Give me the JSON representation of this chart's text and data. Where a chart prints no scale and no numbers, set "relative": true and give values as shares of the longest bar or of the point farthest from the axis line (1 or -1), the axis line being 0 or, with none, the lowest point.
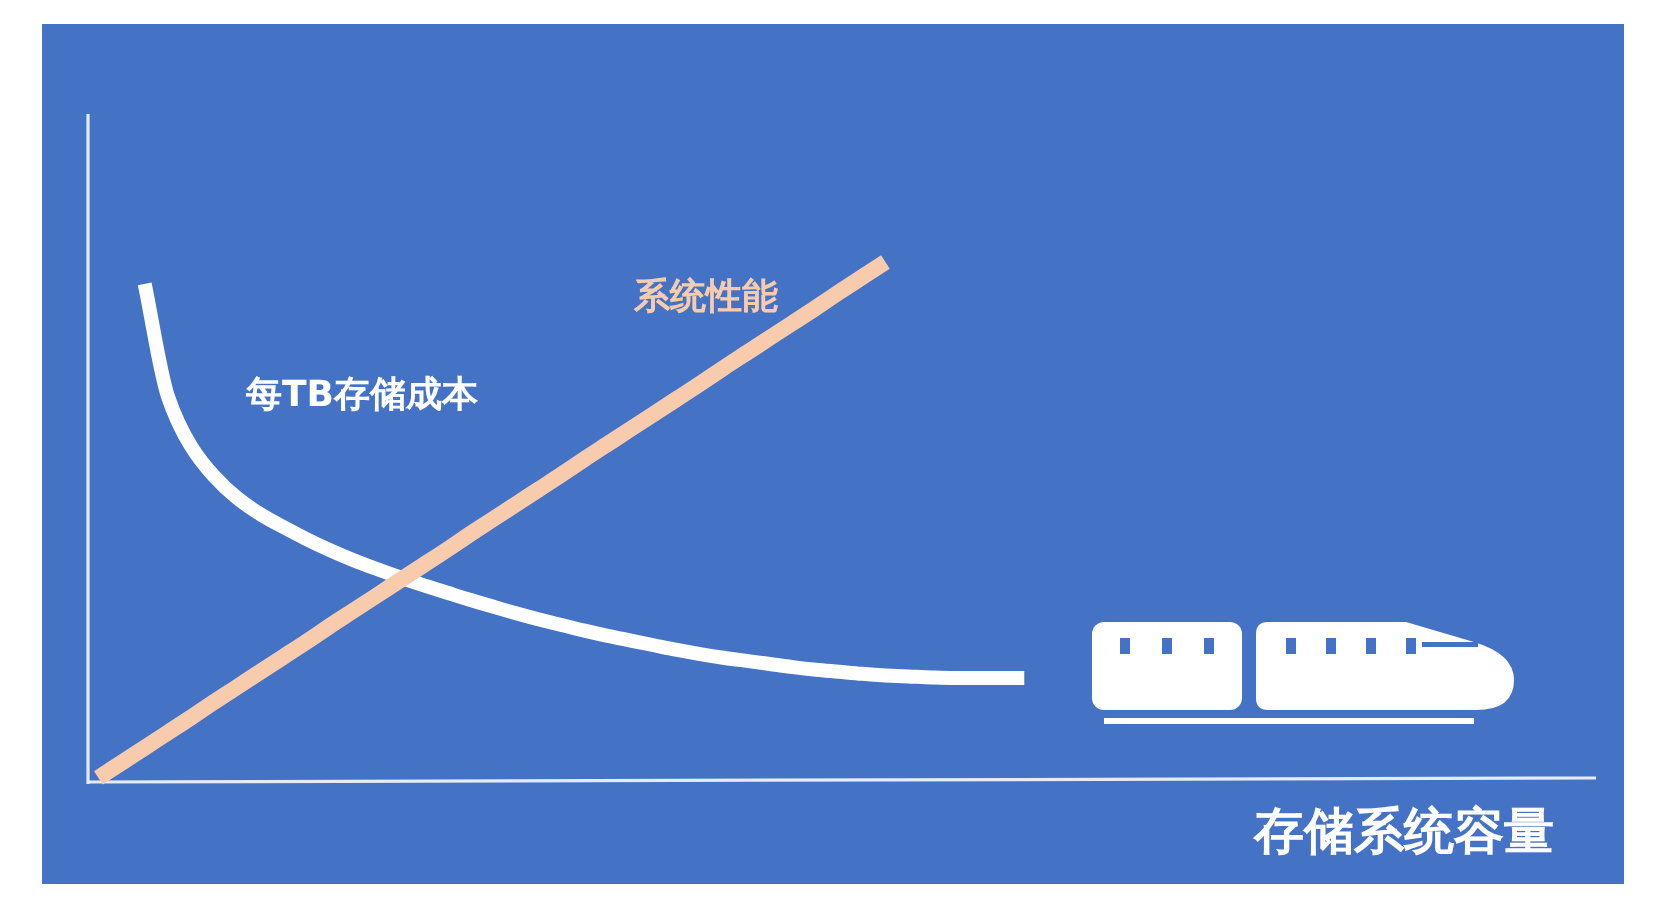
{
  "chart_data": {
    "type": "line",
    "xlabel": "存储系统容量",
    "relative": true,
    "categories": [
      null,
      null,
      null,
      null,
      null,
      null,
      null,
      null,
      null,
      null,
      null,
      null,
      null,
      null,
      null,
      null,
      null,
      null,
      null,
      null,
      null,
      null,
      null,
      null,
      null,
      null,
      null,
      null,
      null,
      null,
      null,
      null,
      null,
      null,
      null,
      null,
      null,
      null,
      null,
      null,
      null,
      null,
      null,
      null,
      null,
      null,
      null,
      null,
      null,
      null,
      null,
      null,
      null,
      null,
      null,
      null,
      null,
      null,
      null,
      null,
      null,
      null,
      null,
      null,
      null
    ],
    "series": [
      {
        "name": "每TB存储成本",
        "color": "#ffffff",
        "values": [
          null,
          null,
          0.958,
          0.742,
          0.646,
          0.588,
          0.546,
          0.515,
          0.49,
          0.467,
          0.446,
          0.427,
          0.41,
          0.394,
          0.379,
          0.365,
          0.351,
          0.338,
          0.325,
          0.313,
          0.302,
          0.291,
          0.281,
          0.272,
          0.263,
          0.254,
          0.246,
          0.239,
          0.233,
          0.227,
          0.221,
          0.216,
          0.212,
          0.208,
          0.205,
          0.203,
          0.201,
          0.2,
          0.2,
          0.2,
          0.2,
          null,
          null,
          null,
          null,
          null,
          null,
          null,
          null,
          null,
          null,
          null,
          null,
          null,
          null,
          null,
          null,
          null,
          null,
          null,
          null,
          null,
          null,
          null,
          null
        ]
      },
      {
        "name": "系统性能",
        "color": "#f8cbad",
        "values": [
          0.008,
          0.037,
          0.066,
          0.095,
          0.124,
          0.154,
          0.183,
          0.212,
          0.241,
          0.27,
          0.3,
          0.329,
          0.358,
          0.387,
          0.416,
          0.445,
          0.475,
          0.504,
          0.533,
          0.562,
          0.591,
          0.621,
          0.65,
          0.679,
          0.708,
          0.737,
          0.766,
          0.796,
          0.825,
          0.854,
          0.883,
          0.912,
          0.942,
          0.971,
          1.0,
          null,
          null,
          null,
          null,
          null,
          null,
          null,
          null,
          null,
          null,
          null,
          null,
          null,
          null,
          null,
          null,
          null,
          null,
          null,
          null,
          null,
          null,
          null,
          null,
          null,
          null,
          null,
          null,
          null,
          null
        ]
      }
    ]
  }
}
